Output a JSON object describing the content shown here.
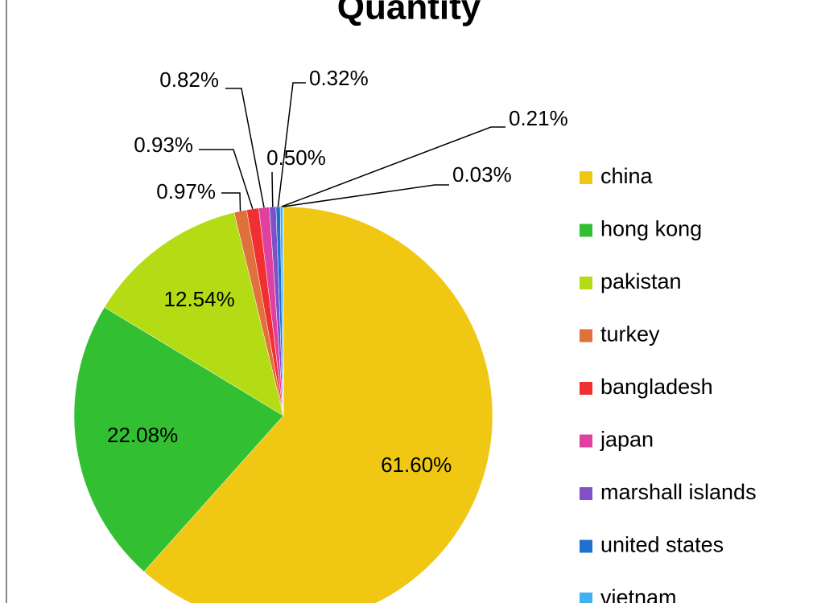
{
  "chart_data": {
    "type": "pie",
    "title": "Quantity",
    "categories": [
      "china",
      "hong kong",
      "pakistan",
      "turkey",
      "bangladesh",
      "japan",
      "marshall islands",
      "united states",
      "vietnam",
      null
    ],
    "values": [
      61.6,
      22.08,
      12.54,
      0.97,
      0.93,
      0.82,
      0.5,
      0.32,
      0.21,
      0.03
    ],
    "value_labels": [
      "61.60%",
      "22.08%",
      "12.54%",
      "0.97%",
      "0.93%",
      "0.82%",
      "0.50%",
      "0.32%",
      "0.21%",
      "0.03%"
    ],
    "colors": [
      "#f0c814",
      "#32c032",
      "#b4dc14",
      "#e0703c",
      "#f03030",
      "#e040a0",
      "#8050c8",
      "#2070d0",
      "#40b0f0",
      "#90c8f0"
    ],
    "legend": "right"
  }
}
